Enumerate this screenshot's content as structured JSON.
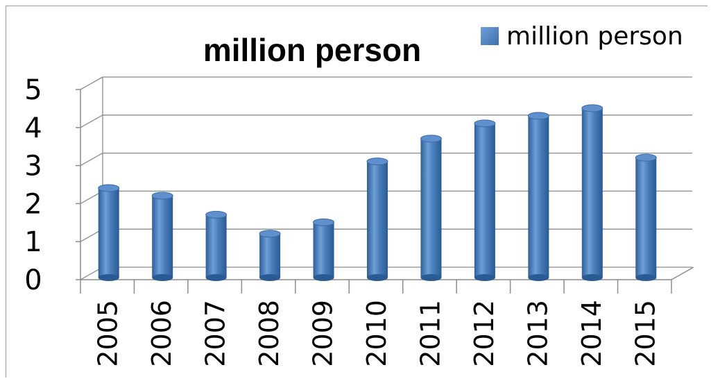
{
  "chart_data": {
    "type": "bar",
    "title": "million person",
    "categories": [
      "2005",
      "2006",
      "2007",
      "2008",
      "2009",
      "2010",
      "2011",
      "2012",
      "2013",
      "2014",
      "2015"
    ],
    "series": [
      {
        "name": "million person",
        "values": [
          2.5,
          2.3,
          1.8,
          1.3,
          1.6,
          3.2,
          3.8,
          4.2,
          4.4,
          4.6,
          3.3
        ]
      }
    ],
    "xlabel": "",
    "ylabel": "",
    "ylim": [
      0,
      5
    ],
    "yticks": [
      "0",
      "1",
      "2",
      "3",
      "4",
      "5"
    ],
    "grid": true,
    "legend": "top-right",
    "colors": {
      "bar": "#4a7ebb",
      "bar_dark": "#2a5a94",
      "bar_light": "#6f9fd8",
      "grid": "#8c8c8c",
      "axis": "#8c8c8c",
      "text": "#000000"
    }
  }
}
